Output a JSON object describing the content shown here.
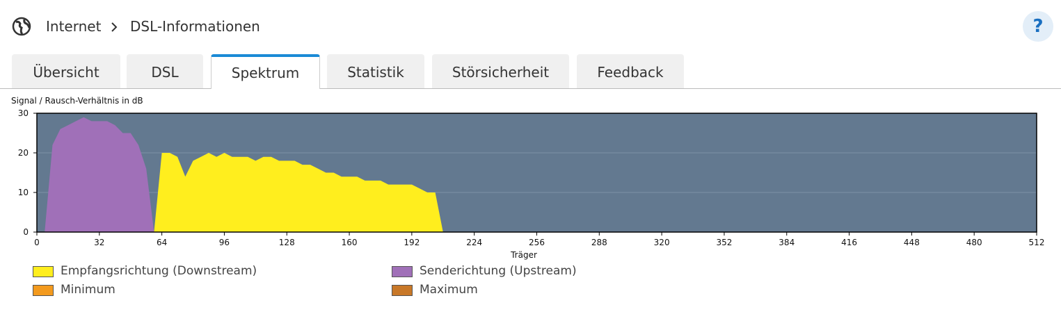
{
  "header": {
    "section": "Internet",
    "page": "DSL-Informationen",
    "help": "?"
  },
  "tabs": [
    "Übersicht",
    "DSL",
    "Spektrum",
    "Statistik",
    "Störsicherheit",
    "Feedback"
  ],
  "active_tab": 2,
  "chart_data": {
    "type": "area",
    "y_label": "Signal / Rausch-Verhältnis in dB",
    "x_label": "Träger",
    "xlim": [
      0,
      512
    ],
    "xticks": [
      0,
      32,
      64,
      96,
      128,
      160,
      192,
      224,
      256,
      288,
      320,
      352,
      384,
      416,
      448,
      480,
      512
    ],
    "ylim": [
      0,
      30
    ],
    "yticks": [
      0,
      10,
      20,
      30
    ],
    "grid": true,
    "background": "#637990",
    "x": [
      0,
      4,
      8,
      12,
      16,
      20,
      24,
      28,
      32,
      36,
      40,
      44,
      48,
      52,
      56,
      60,
      64,
      68,
      72,
      76,
      80,
      84,
      88,
      92,
      96,
      100,
      104,
      108,
      112,
      116,
      120,
      124,
      128,
      132,
      136,
      140,
      144,
      148,
      152,
      156,
      160,
      164,
      168,
      172,
      176,
      180,
      184,
      188,
      192,
      196,
      200,
      204,
      208,
      212
    ],
    "series": [
      {
        "name": "Empfangsrichtung (Downstream)",
        "color": "#ffee1e",
        "values": [
          null,
          null,
          null,
          null,
          null,
          null,
          null,
          null,
          null,
          null,
          null,
          null,
          null,
          null,
          null,
          0,
          20,
          20,
          19,
          14,
          18,
          19,
          20,
          19,
          20,
          19,
          19,
          19,
          18,
          19,
          19,
          18,
          18,
          18,
          17,
          17,
          16,
          15,
          15,
          14,
          14,
          14,
          13,
          13,
          13,
          12,
          12,
          12,
          12,
          11,
          10,
          10,
          0,
          null
        ]
      },
      {
        "name": "Senderichtung (Upstream)",
        "color": "#a070b8",
        "values": [
          null,
          0,
          22,
          26,
          27,
          28,
          29,
          28,
          28,
          28,
          27,
          25,
          25,
          22,
          16,
          0,
          null,
          null,
          null,
          null,
          null,
          null,
          null,
          null,
          null,
          null,
          null,
          null,
          null,
          null,
          null,
          null,
          null,
          null,
          null,
          null,
          null,
          null,
          null,
          null,
          null,
          null,
          null,
          null,
          null,
          null,
          null,
          null,
          null,
          null,
          null,
          null,
          null,
          null
        ]
      },
      {
        "name": "Minimum",
        "color": "#f39a1e"
      },
      {
        "name": "Maximum",
        "color": "#c87828"
      }
    ]
  }
}
